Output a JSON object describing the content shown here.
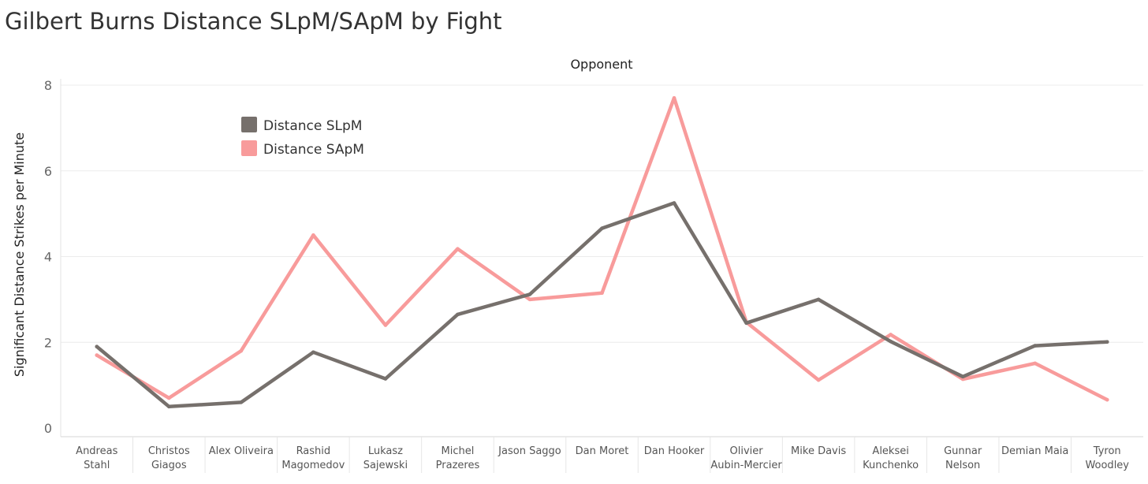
{
  "chart_data": {
    "type": "line",
    "title": "Gilbert Burns Distance SLpM/SApM by Fight",
    "xlabel": "Opponent",
    "ylabel": "Significant Distance Strikes per Minute",
    "ylim": [
      0,
      8
    ],
    "yticks": [
      0,
      2,
      4,
      6,
      8
    ],
    "grid": true,
    "legend_position": "top-left",
    "categories": [
      [
        "Andreas",
        "Stahl"
      ],
      [
        "Christos",
        "Giagos"
      ],
      [
        "Alex Oliveira"
      ],
      [
        "Rashid",
        "Magomedov"
      ],
      [
        "Lukasz",
        "Sajewski"
      ],
      [
        "Michel",
        "Prazeres"
      ],
      [
        "Jason Saggo"
      ],
      [
        "Dan Moret"
      ],
      [
        "Dan Hooker"
      ],
      [
        "Olivier",
        "Aubin-Mercier"
      ],
      [
        "Mike Davis"
      ],
      [
        "Aleksei",
        "Kunchenko"
      ],
      [
        "Gunnar",
        "Nelson"
      ],
      [
        "Demian Maia"
      ],
      [
        "Tyron",
        "Woodley"
      ]
    ],
    "series": [
      {
        "name": "Distance SLpM",
        "color": "#76706c",
        "values": [
          1.9,
          0.5,
          0.6,
          1.77,
          1.15,
          2.65,
          3.12,
          4.66,
          5.25,
          2.45,
          3.0,
          2.02,
          1.2,
          1.92,
          2.01
        ]
      },
      {
        "name": "Distance SApM",
        "color": "#f89b9b",
        "values": [
          1.7,
          0.7,
          1.8,
          4.5,
          2.4,
          4.18,
          3.0,
          3.15,
          7.7,
          2.47,
          1.12,
          2.18,
          1.14,
          1.51,
          0.66
        ]
      }
    ]
  }
}
